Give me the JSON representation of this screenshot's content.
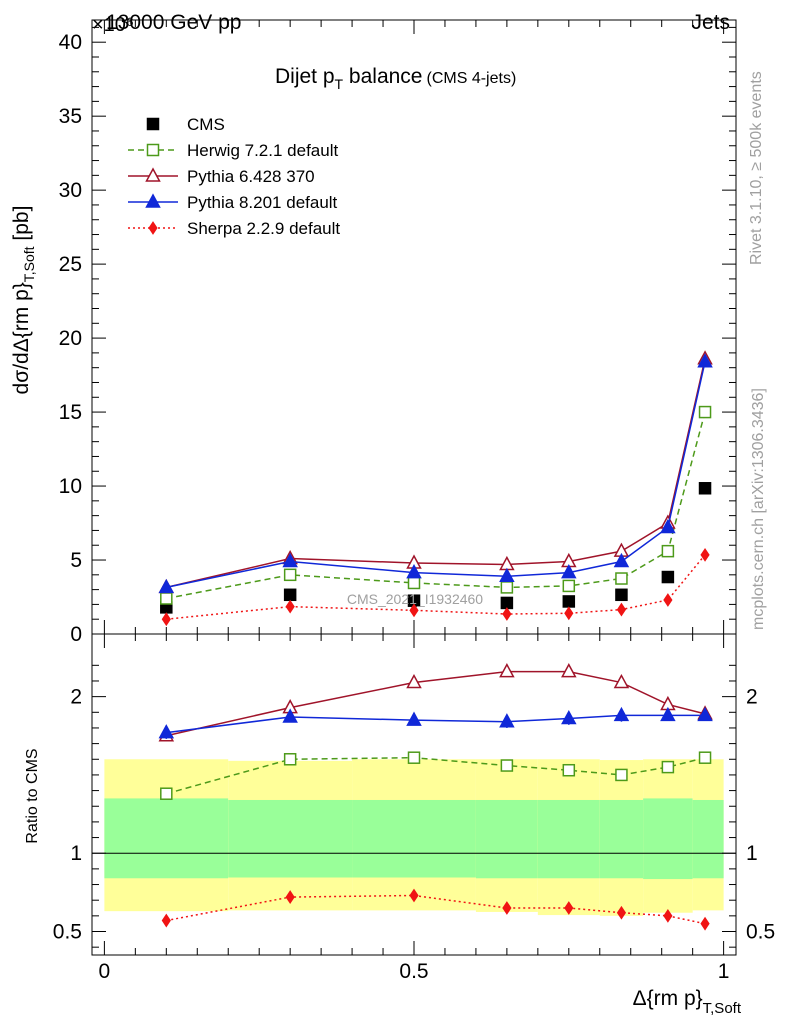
{
  "header": {
    "energy_label": "13000 GeV pp",
    "process_label": "Jets",
    "exponent_label": "×10⁶"
  },
  "main_plot": {
    "title_main": "Dijet p",
    "title_sub": "T",
    "title_rest": " balance",
    "title_note": "(CMS 4-jets)",
    "ylabel": "dσ/dΔ{rm p}",
    "ylabel_sub": "T,Soft",
    "ylabel_unit": " [pb]",
    "watermark": "CMS_2021_I1932460"
  },
  "ratio_plot": {
    "ylabel": "Ratio to CMS"
  },
  "xaxis": {
    "label": "Δ{rm p}",
    "label_sub": "T,Soft"
  },
  "side_labels": {
    "rivet": "Rivet 3.1.10, ≥ 500k events",
    "mcplots": "mcplots.cern.ch [arXiv:1306.3436]"
  },
  "chart_data": [
    {
      "type": "scatter",
      "panel": "main",
      "x": [
        0.1,
        0.3,
        0.5,
        0.65,
        0.75,
        0.835,
        0.91,
        0.97
      ],
      "x_bin_edges": [
        0,
        0.2,
        0.4,
        0.6,
        0.7,
        0.8,
        0.87,
        0.95,
        1.0
      ],
      "xlim": [
        -0.02,
        1.02
      ],
      "ylim": [
        0,
        41.5
      ],
      "y_multiplier": "10^6",
      "yticks": [
        0,
        5,
        10,
        15,
        20,
        25,
        30,
        35,
        40
      ],
      "xticks": [
        0,
        0.5,
        1
      ],
      "series": [
        {
          "name": "CMS",
          "style": "data",
          "color": "#000000",
          "marker": "square-filled",
          "values": [
            1.8,
            2.65,
            2.25,
            2.1,
            2.2,
            2.65,
            3.85,
            9.85
          ]
        },
        {
          "name": "Herwig 7.2.1 default",
          "style": "dashed",
          "color": "#4d9a1a",
          "marker": "square-open",
          "values": [
            2.4,
            4.0,
            3.45,
            3.15,
            3.25,
            3.75,
            5.6,
            15.0
          ]
        },
        {
          "name": "Pythia 6.428 370",
          "style": "solid",
          "color": "#a0142a",
          "marker": "triangle-open",
          "values": [
            3.15,
            5.1,
            4.8,
            4.7,
            4.9,
            5.6,
            7.5,
            18.6
          ]
        },
        {
          "name": "Pythia 8.201 default",
          "style": "solid",
          "color": "#1028d8",
          "marker": "triangle-filled",
          "values": [
            3.15,
            4.9,
            4.15,
            3.9,
            4.15,
            4.9,
            7.2,
            18.4
          ]
        },
        {
          "name": "Sherpa 2.2.9 default",
          "style": "dotted",
          "color": "#f01414",
          "marker": "diamond-filled",
          "values": [
            1.0,
            1.85,
            1.6,
            1.35,
            1.4,
            1.65,
            2.3,
            5.35
          ]
        }
      ]
    },
    {
      "type": "scatter",
      "panel": "ratio",
      "x": [
        0.1,
        0.3,
        0.5,
        0.65,
        0.75,
        0.835,
        0.91,
        0.97
      ],
      "xlim": [
        -0.02,
        1.02
      ],
      "ylim": [
        0.35,
        2.4
      ],
      "yticks": [
        0.5,
        1,
        2
      ],
      "uncertainty_bands": {
        "bin_edges": [
          0,
          0.2,
          0.4,
          0.6,
          0.7,
          0.8,
          0.87,
          0.95,
          1.0
        ],
        "stat_low": [
          0.84,
          0.845,
          0.845,
          0.84,
          0.84,
          0.84,
          0.835,
          0.84
        ],
        "stat_high": [
          1.35,
          1.34,
          1.34,
          1.34,
          1.34,
          1.34,
          1.35,
          1.34
        ],
        "total_low": [
          0.63,
          0.635,
          0.635,
          0.625,
          0.605,
          0.6,
          0.62,
          0.635
        ],
        "total_high": [
          1.6,
          1.59,
          1.6,
          1.6,
          1.6,
          1.595,
          1.6,
          1.6
        ],
        "stat_color": "#99ff99",
        "total_color": "#ffff99"
      },
      "series": [
        {
          "name": "Herwig 7.2.1 default",
          "style": "dashed",
          "color": "#4d9a1a",
          "marker": "square-open",
          "values": [
            1.38,
            1.6,
            1.61,
            1.56,
            1.53,
            1.5,
            1.55,
            1.61
          ]
        },
        {
          "name": "Pythia 6.428 370",
          "style": "solid",
          "color": "#a0142a",
          "marker": "triangle-open",
          "values": [
            1.75,
            1.93,
            2.09,
            2.16,
            2.16,
            2.09,
            1.95,
            1.89
          ]
        },
        {
          "name": "Pythia 8.201 default",
          "style": "solid",
          "color": "#1028d8",
          "marker": "triangle-filled",
          "values": [
            1.77,
            1.87,
            1.85,
            1.84,
            1.86,
            1.88,
            1.88,
            1.88
          ],
          "errors": [
            0.04,
            0.02,
            0.03,
            0.04,
            0.04,
            0.04,
            0.03,
            0.02
          ]
        },
        {
          "name": "Sherpa 2.2.9 default",
          "style": "dotted",
          "color": "#f01414",
          "marker": "diamond-filled",
          "values": [
            0.57,
            0.72,
            0.73,
            0.65,
            0.65,
            0.62,
            0.6,
            0.55
          ]
        }
      ]
    }
  ]
}
